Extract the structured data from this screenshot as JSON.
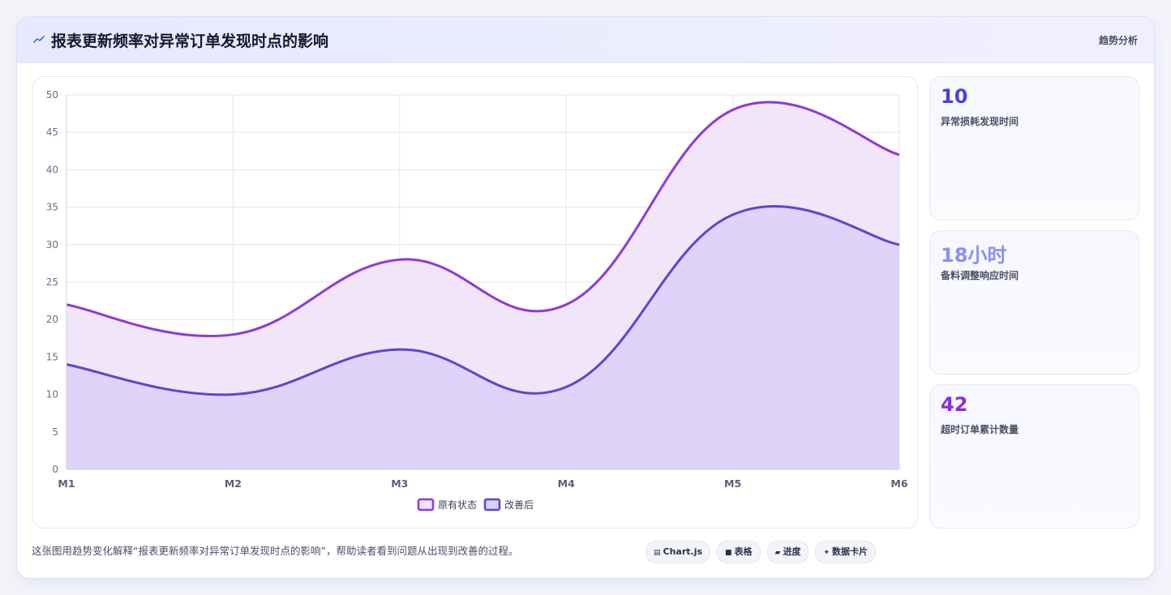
{
  "header": {
    "title": "报表更新频率对异常订单发现时点的影响",
    "tag": "趋势分析",
    "icon": "trend-line-icon"
  },
  "stats": [
    {
      "value": "10",
      "label": "异常损耗发现时间",
      "color": "#4f3fd4"
    },
    {
      "value": "18小时",
      "label": "备料调整响应时间",
      "color": "#8c8ff0"
    },
    {
      "value": "42",
      "label": "超时订单累计数量",
      "color": "#8a2fd6"
    }
  ],
  "footer": {
    "text": "这张图用趋势变化解释“报表更新频率对异常订单发现时点的影响”，帮助读者看到问题从出现到改善的过程。",
    "chips": [
      {
        "icon": "chart-icon",
        "label": "Chart.js"
      },
      {
        "icon": "table-icon",
        "label": "表格"
      },
      {
        "icon": "progress-icon",
        "label": "进度"
      },
      {
        "icon": "data-card-icon",
        "label": "数据卡片"
      }
    ]
  },
  "chart_data": {
    "type": "area",
    "categories": [
      "M1",
      "M2",
      "M3",
      "M4",
      "M5",
      "M6"
    ],
    "series": [
      {
        "name": "原有状态",
        "values": [
          22,
          18,
          28,
          22,
          48,
          42
        ],
        "color": "#8e3ad6",
        "fill": "#efe2fa"
      },
      {
        "name": "改善后",
        "values": [
          14,
          10,
          16,
          11,
          34,
          30
        ],
        "color": "#5b45cf",
        "fill": "#dcd0f7"
      }
    ],
    "ylim": [
      0,
      50
    ],
    "yticks": [
      0,
      5,
      10,
      15,
      20,
      25,
      30,
      35,
      40,
      45,
      50
    ],
    "grid": true,
    "legend": "bottom-center"
  }
}
